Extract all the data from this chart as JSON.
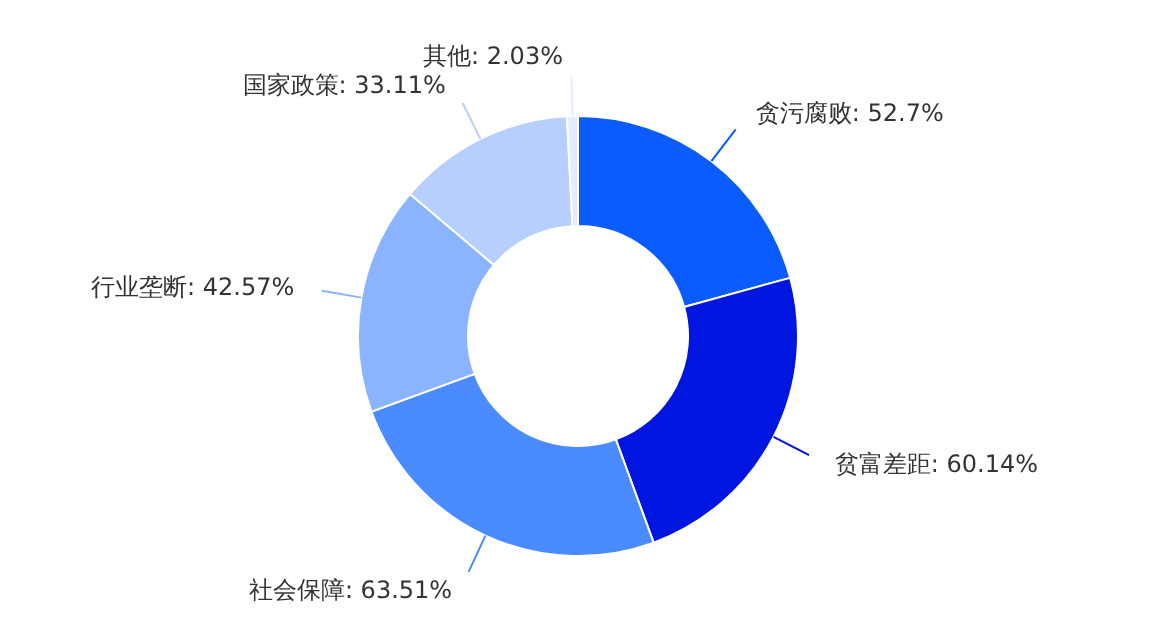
{
  "chart_data": {
    "type": "donut",
    "categories": [
      "贪污腐败",
      "贫富差距",
      "社会保障",
      "行业垄断",
      "国家政策",
      "其他"
    ],
    "values": [
      52.7,
      60.14,
      63.51,
      42.57,
      33.11,
      2.03
    ],
    "value_labels": [
      "52.7%",
      "60.14%",
      "63.51%",
      "42.57%",
      "33.11%",
      "2.03%"
    ],
    "colors": [
      "#0a5cff",
      "#0015e0",
      "#4a8bff",
      "#8ab4ff",
      "#b7cfff",
      "#e3ebff"
    ],
    "legend": false
  }
}
